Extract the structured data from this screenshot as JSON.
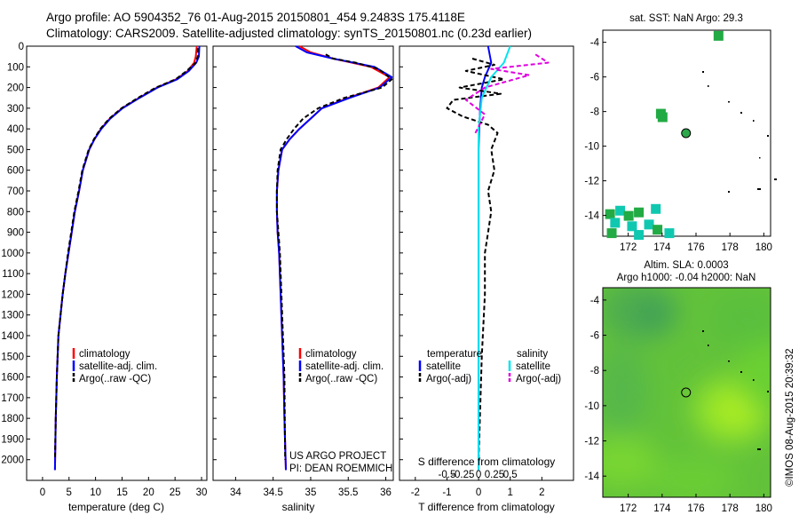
{
  "header": {
    "line1": "Argo profile: AO 5904352_76 01-Aug-2015 20150801_454 9.2483S 175.4118E",
    "line2": "Climatology: CARS2009. Satellite-adjusted climatology: synTS_20150801.nc (0.23d earlier)"
  },
  "sst_title": "sat. SST: NaN Argo: 29.3",
  "sla_title_1": "Altim. SLA: 0.0003",
  "sla_title_2": "Argo h1000: -0.04 h2000: NaN",
  "credit_1": "US ARGO PROJECT",
  "credit_2": "PI: DEAN ROEMMICH",
  "timestamp": "©IMOS 08-Aug-2015 20:39:32",
  "legend_profiles": [
    "climatology",
    "satellite-adj. clim.",
    "Argo(..raw -QC)"
  ],
  "legend_diff": {
    "temp_head": "temperature",
    "sal_head": "salinity",
    "satellite": "satellite",
    "argo": "Argo(-adj)"
  },
  "colors": {
    "climatology": "#ff0000",
    "satellite": "#0000ff",
    "argo": "#000000",
    "sal_satellite": "#00e5ee",
    "sal_argo": "#e000e0",
    "sst_patch": "#22aa44",
    "sst_patch2": "#10c8b0"
  },
  "chart_data": [
    {
      "type": "line",
      "id": "temperature",
      "xlabel": "temperature (deg C)",
      "ylabel": "",
      "xlim": [
        -3,
        31
      ],
      "ylim": [
        2100,
        0
      ],
      "xticks": [
        0,
        5,
        10,
        15,
        20,
        25,
        30
      ],
      "yticks": [
        0,
        100,
        200,
        300,
        400,
        500,
        600,
        700,
        800,
        900,
        1000,
        1100,
        1200,
        1300,
        1400,
        1500,
        1600,
        1700,
        1800,
        1900,
        2000
      ],
      "series": [
        {
          "name": "climatology",
          "x": [
            29.1,
            28.9,
            28.6,
            27.4,
            25.2,
            21.6,
            18.2,
            15.0,
            12.7,
            11.0,
            9.8,
            8.8,
            7.6,
            6.9,
            6.1,
            5.5,
            4.9,
            4.3,
            3.8,
            3.4,
            3.0,
            2.7,
            2.5,
            2.35
          ],
          "y": [
            0,
            50,
            80,
            120,
            160,
            200,
            250,
            300,
            350,
            400,
            450,
            500,
            600,
            700,
            800,
            900,
            1000,
            1100,
            1200,
            1300,
            1400,
            1600,
            1800,
            2050
          ]
        },
        {
          "name": "satellite-adj. clim.",
          "x": [
            29.6,
            29.5,
            29.0,
            27.6,
            25.4,
            21.7,
            18.3,
            15.1,
            12.8,
            11.1,
            9.8,
            8.8,
            7.6,
            6.9,
            6.1,
            5.5,
            4.9,
            4.3,
            3.8,
            3.4,
            3.0,
            2.7,
            2.5,
            2.35
          ],
          "y": [
            0,
            50,
            80,
            120,
            160,
            200,
            250,
            300,
            350,
            400,
            450,
            500,
            600,
            700,
            800,
            900,
            1000,
            1100,
            1200,
            1300,
            1400,
            1600,
            1800,
            2050
          ]
        },
        {
          "name": "Argo(..raw -QC)",
          "x": [
            29.3,
            29.3,
            28.9,
            27.2,
            25.1,
            21.4,
            18.0,
            14.9,
            12.6,
            10.9,
            9.7,
            8.7,
            7.5,
            6.8,
            6.0,
            5.4,
            4.8,
            4.3,
            3.8,
            3.4,
            3.0,
            2.7,
            2.5,
            2.35
          ],
          "y": [
            10,
            50,
            80,
            120,
            160,
            200,
            250,
            300,
            350,
            400,
            450,
            500,
            600,
            700,
            800,
            900,
            1000,
            1100,
            1200,
            1300,
            1400,
            1600,
            1800,
            2000
          ]
        }
      ]
    },
    {
      "type": "line",
      "id": "salinity",
      "xlabel": "salinity",
      "ylabel": "",
      "xlim": [
        33.7,
        36.1
      ],
      "ylim": [
        2100,
        0
      ],
      "xticks": [
        34,
        34.5,
        35,
        35.5,
        36
      ],
      "xticklabels": [
        "34",
        "34.5",
        "35",
        "35.5",
        "36"
      ],
      "series": [
        {
          "name": "climatology",
          "x": [
            34.85,
            35.0,
            35.3,
            35.8,
            36.05,
            35.9,
            35.5,
            35.15,
            35.0,
            34.85,
            34.72,
            34.62,
            34.57,
            34.55,
            34.55,
            34.56,
            34.58,
            34.6,
            34.62,
            34.64,
            34.65,
            34.67
          ],
          "y": [
            0,
            30,
            60,
            100,
            150,
            200,
            250,
            300,
            350,
            400,
            450,
            500,
            600,
            700,
            800,
            900,
            1000,
            1200,
            1400,
            1600,
            1800,
            2050
          ]
        },
        {
          "name": "satellite-adj. clim.",
          "x": [
            34.8,
            34.95,
            35.3,
            35.85,
            36.08,
            35.92,
            35.52,
            35.15,
            35.0,
            34.85,
            34.72,
            34.62,
            34.57,
            34.55,
            34.55,
            34.56,
            34.58,
            34.6,
            34.62,
            34.64,
            34.65,
            34.67
          ],
          "y": [
            0,
            30,
            60,
            100,
            150,
            200,
            250,
            300,
            350,
            400,
            450,
            500,
            600,
            700,
            800,
            900,
            1000,
            1200,
            1400,
            1600,
            1800,
            2050
          ]
        },
        {
          "name": "Argo(..raw -QC)",
          "x": [
            35.2,
            35.3,
            35.6,
            35.9,
            36.08,
            35.95,
            35.45,
            35.1,
            34.9,
            34.78,
            34.68,
            34.6,
            34.56,
            34.55,
            34.55,
            34.57,
            34.59,
            34.61,
            34.63,
            34.65,
            34.66
          ],
          "y": [
            40,
            60,
            80,
            110,
            160,
            200,
            250,
            300,
            350,
            400,
            450,
            500,
            600,
            700,
            800,
            900,
            1000,
            1200,
            1400,
            1600,
            2000
          ]
        }
      ]
    },
    {
      "type": "line",
      "id": "difference",
      "xlabel": "T difference from climatology",
      "xlabel_top": "S difference from climatology",
      "xlim": [
        -2.5,
        3
      ],
      "ylim": [
        2100,
        0
      ],
      "xticks": [
        -2,
        -1,
        0,
        1,
        2
      ],
      "xticks_top": [
        -0.5,
        -0.25,
        0,
        0.25,
        0.5
      ],
      "series": [
        {
          "name": "temperature satellite",
          "x": [
            0.3,
            0.4,
            0.2,
            0.1,
            0.05,
            0.02,
            0.0,
            0.0,
            0.0,
            0.0,
            0.0
          ],
          "y": [
            0,
            80,
            150,
            200,
            300,
            400,
            500,
            800,
            1200,
            1600,
            2050
          ]
        },
        {
          "name": "temperature Argo(-adj)",
          "x": [
            -0.2,
            0.5,
            -0.4,
            0.8,
            -0.6,
            0.7,
            -0.8,
            -1.0,
            -0.5,
            0.3,
            0.6,
            0.4,
            0.5,
            0.3,
            0.4,
            0.3,
            0.2,
            0.2,
            0.1,
            0.0
          ],
          "y": [
            60,
            90,
            120,
            160,
            200,
            230,
            260,
            300,
            340,
            380,
            420,
            500,
            600,
            700,
            800,
            900,
            1000,
            1200,
            1500,
            2000
          ]
        },
        {
          "name": "salinity satellite",
          "x": [
            0.5,
            0.4,
            0.2,
            0.05,
            0.0,
            0.0,
            0.0,
            0.0,
            0.0
          ],
          "y": [
            0,
            80,
            150,
            250,
            400,
            600,
            1000,
            1500,
            2050
          ]
        },
        {
          "name": "salinity Argo(-adj)",
          "x": [
            0.9,
            1.1,
            0.2,
            0.8,
            0.1,
            -0.2,
            0.1,
            -0.05
          ],
          "y": [
            40,
            80,
            110,
            140,
            200,
            260,
            330,
            420
          ]
        }
      ]
    },
    {
      "type": "heatmap",
      "id": "sst_map",
      "title": "sat. SST: NaN Argo: 29.3",
      "xlim": [
        170.5,
        180.4
      ],
      "ylim": [
        -15.2,
        -3.3
      ],
      "xticks": [
        172,
        174,
        176,
        178,
        180
      ],
      "yticks": [
        -4,
        -6,
        -8,
        -10,
        -12,
        -14
      ],
      "argo_position": {
        "lon": 175.41,
        "lat": -9.25
      }
    },
    {
      "type": "heatmap",
      "id": "sla_map",
      "title": "Altim. SLA: 0.0003",
      "subtitle": "Argo h1000: -0.04 h2000: NaN",
      "xlim": [
        170.5,
        180.4
      ],
      "ylim": [
        -15.2,
        -3.3
      ],
      "xticks": [
        172,
        174,
        176,
        178,
        180
      ],
      "yticks": [
        -4,
        -6,
        -8,
        -10,
        -12,
        -14
      ],
      "argo_position": {
        "lon": 175.41,
        "lat": -9.25
      }
    }
  ]
}
